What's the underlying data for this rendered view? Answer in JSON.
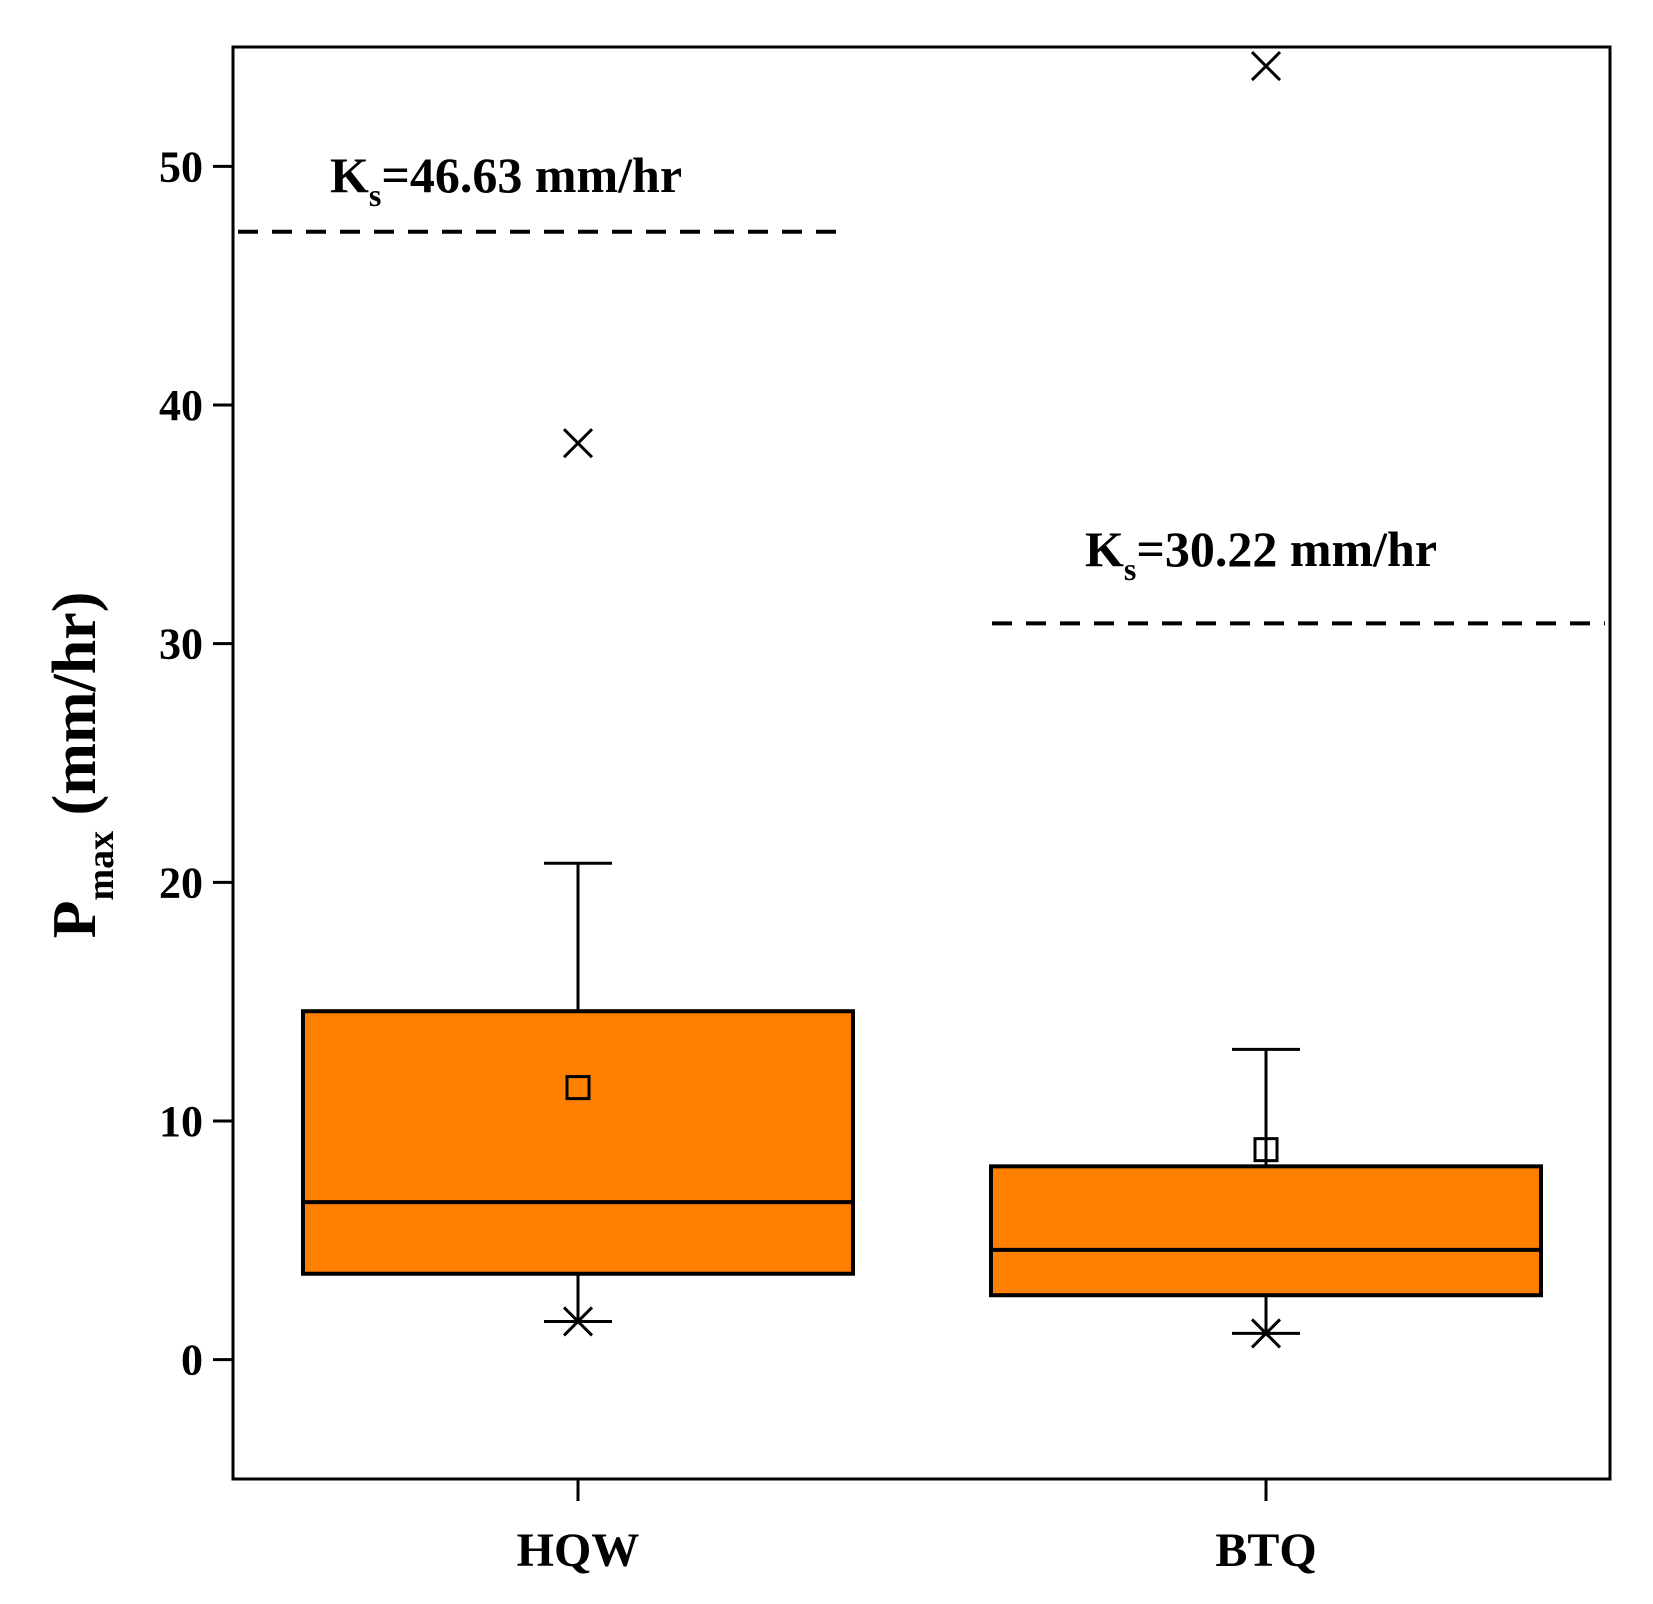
{
  "chart_data": {
    "type": "box",
    "title": "",
    "xlabel": "",
    "ylabel": {
      "main": "P",
      "sub": "max",
      "rest": " (mm/hr)"
    },
    "ylim": [
      -5,
      55
    ],
    "yticks": [
      0,
      10,
      20,
      30,
      40,
      50
    ],
    "grid": false,
    "box_color": "#ff8000",
    "line_color": "#000000",
    "categories": [
      "HQW",
      "BTQ"
    ],
    "boxes": [
      {
        "name": "HQW",
        "whisker_low": 1.6,
        "q1": 3.6,
        "median": 6.6,
        "q3": 14.6,
        "whisker_high": 20.8,
        "mean": 11.4,
        "outliers": [
          38.4
        ],
        "min_marker": 1.6
      },
      {
        "name": "BTQ",
        "whisker_low": 1.1,
        "q1": 2.7,
        "median": 4.6,
        "q3": 8.1,
        "whisker_high": 13.0,
        "mean": 8.8,
        "outliers": [
          54.2
        ],
        "min_marker": 1.1
      }
    ],
    "reference_lines": [
      {
        "value": 46.63,
        "label_main": "K",
        "label_sub": "s",
        "label_rest": "=46.63 mm/hr",
        "span": "left"
      },
      {
        "value": 30.22,
        "label_main": "K",
        "label_sub": "s",
        "label_rest": "=30.22 mm/hr",
        "span": "right"
      }
    ]
  }
}
